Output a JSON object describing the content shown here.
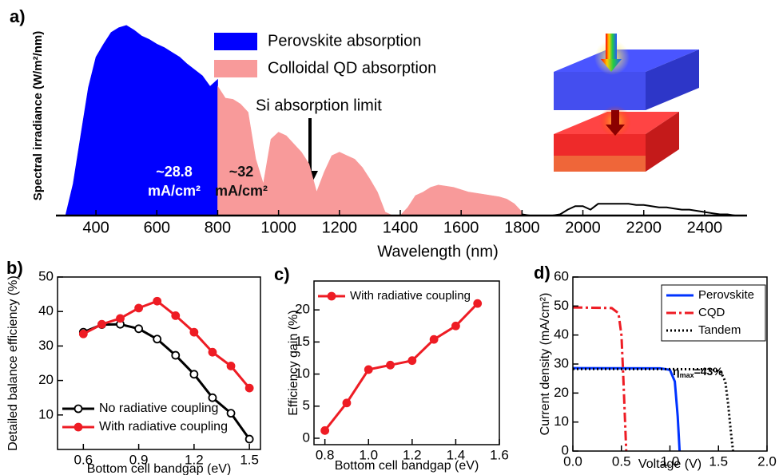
{
  "chart_data": [
    {
      "type": "area",
      "panel_label": "a)",
      "xlabel": "Wavelength (nm)",
      "ylabel": "Spectral irradiance (W/m²/nm)",
      "xlim": [
        300,
        2500
      ],
      "xticks": [
        400,
        600,
        800,
        1000,
        1200,
        1400,
        1600,
        1800,
        2000,
        2200,
        2400
      ],
      "ylim": [
        0,
        1.7
      ],
      "series": [
        {
          "name": "Perovskite absorption",
          "color": "#0000ff",
          "fill": true,
          "x": [
            300,
            325,
            350,
            375,
            400,
            425,
            450,
            475,
            500,
            525,
            550,
            575,
            600,
            625,
            650,
            675,
            700,
            725,
            750,
            775,
            800
          ],
          "values": [
            0,
            0.27,
            0.68,
            1.09,
            1.35,
            1.46,
            1.56,
            1.6,
            1.62,
            1.58,
            1.53,
            1.5,
            1.46,
            1.43,
            1.39,
            1.35,
            1.29,
            1.24,
            1.19,
            1.1,
            1.16
          ]
        },
        {
          "name": "Colloidal QD absorption",
          "color": "#f89a9a",
          "fill": true,
          "x": [
            800,
            825,
            850,
            875,
            900,
            925,
            950,
            975,
            1000,
            1025,
            1050,
            1075,
            1100,
            1125,
            1150,
            1175,
            1200,
            1225,
            1250,
            1275,
            1300,
            1325,
            1350,
            1375,
            1400,
            1425,
            1450,
            1475,
            1500,
            1525,
            1550,
            1575,
            1600,
            1625,
            1650,
            1675,
            1700,
            1725,
            1750,
            1775,
            1800
          ],
          "values": [
            1.1,
            1.0,
            0.99,
            0.95,
            0.88,
            0.48,
            0.27,
            0.65,
            0.71,
            0.68,
            0.61,
            0.54,
            0.44,
            0.2,
            0.37,
            0.51,
            0.54,
            0.51,
            0.48,
            0.41,
            0.31,
            0.2,
            0.03,
            0,
            0,
            0.07,
            0.17,
            0.2,
            0.24,
            0.26,
            0.25,
            0.24,
            0.22,
            0.2,
            0.19,
            0.18,
            0.17,
            0.16,
            0.14,
            0.1,
            0.03
          ]
        },
        {
          "color": "#000000",
          "fill": false,
          "x": [
            1800,
            1825,
            1850,
            1875,
            1900,
            1925,
            1950,
            1975,
            2000,
            2025,
            2050,
            2075,
            2100,
            2125,
            2150,
            2175,
            2200,
            2225,
            2250,
            2275,
            2300,
            2325,
            2350,
            2375,
            2400,
            2425,
            2450,
            2475,
            2500
          ],
          "values": [
            0.01,
            0,
            0,
            0,
            0,
            0.01,
            0.05,
            0.08,
            0.08,
            0.05,
            0.1,
            0.1,
            0.1,
            0.1,
            0.1,
            0.09,
            0.09,
            0.08,
            0.07,
            0.07,
            0.06,
            0.05,
            0.05,
            0.04,
            0.03,
            0.02,
            0.01,
            0.01,
            0
          ]
        }
      ],
      "annotations": [
        {
          "lines": [
            "~28.8",
            "mA/cm²"
          ]
        },
        {
          "lines": [
            "~32",
            "mA/cm²"
          ]
        },
        {
          "lines": [
            "Si absorption limit"
          ]
        }
      ]
    },
    {
      "type": "line",
      "panel_label": "b)",
      "xlabel": "Bottom cell bandgap (eV)",
      "ylabel": "Detailed balance efficiency (%)",
      "xlim": [
        0.46,
        1.56
      ],
      "xticks": [
        0.6,
        0.9,
        1.2,
        1.5
      ],
      "ylim": [
        0,
        50
      ],
      "yticks": [
        10,
        20,
        30,
        40,
        50
      ],
      "legend": "lower left",
      "series": [
        {
          "name": "No radiative coupling",
          "color": "#000000",
          "marker": "open",
          "x": [
            0.6,
            0.7,
            0.8,
            0.9,
            1.0,
            1.1,
            1.2,
            1.3,
            1.4,
            1.5
          ],
          "values": [
            34,
            36.2,
            36.3,
            35,
            32,
            27.3,
            21.8,
            15,
            10.5,
            3
          ]
        },
        {
          "name": "With radiative coupling",
          "color": "#ee1c24",
          "marker": "filled",
          "x": [
            0.6,
            0.7,
            0.8,
            0.9,
            1.0,
            1.1,
            1.2,
            1.3,
            1.4,
            1.5
          ],
          "values": [
            33.5,
            36.3,
            38,
            41,
            43,
            38.8,
            34,
            28.2,
            24.2,
            17.8
          ]
        }
      ]
    },
    {
      "type": "line",
      "panel_label": "c)",
      "xlabel": "Bottom cell bandgap (eV)",
      "ylabel": "Efficiency gain (%)",
      "xlim": [
        0.75,
        1.6
      ],
      "xticks": [
        0.8,
        {
          "value": 1.0,
          "label": "1.0"
        },
        1.2,
        1.4,
        1.6
      ],
      "ylim": [
        -1,
        24.5
      ],
      "yticks": [
        0,
        5,
        10,
        15,
        20
      ],
      "legend": "upper left",
      "series": [
        {
          "name": "With radiative coupling",
          "color": "#ee1c24",
          "marker": "filled",
          "x": [
            0.8,
            0.9,
            1.0,
            1.1,
            1.2,
            1.3,
            1.4,
            1.5
          ],
          "values": [
            1.2,
            5.5,
            10.7,
            11.4,
            12.1,
            15.4,
            17.5,
            21
          ]
        }
      ]
    },
    {
      "type": "line",
      "panel_label": "d)",
      "xlabel": "Voltage (V)",
      "ylabel": "Current density (mA/cm²)",
      "xlim": [
        0,
        2.0
      ],
      "xticks": [
        {
          "value": 0,
          "label": "0.0"
        },
        0.5,
        {
          "value": 1,
          "label": "1.0"
        },
        1.5,
        {
          "value": 2,
          "label": "2.0"
        }
      ],
      "ylim": [
        0,
        60
      ],
      "yticks": [
        0,
        10,
        20,
        30,
        40,
        50,
        60
      ],
      "legend": "upper right",
      "series": [
        {
          "name": "Perovskite",
          "color": "#0033ff",
          "dash": "solid",
          "x": [
            0,
            0.9,
            1.0,
            1.05,
            1.08,
            1.1
          ],
          "values": [
            28.6,
            28.5,
            28,
            24,
            12,
            0
          ]
        },
        {
          "name": "CQD",
          "color": "#ee1c24",
          "dash": "dashdot",
          "x": [
            0,
            0.4,
            0.47,
            0.5,
            0.52,
            0.55
          ],
          "values": [
            49.5,
            49.3,
            47.5,
            40,
            25,
            0
          ]
        },
        {
          "name": "Tandem",
          "color": "#000000",
          "dash": "dotted",
          "x": [
            0,
            1.4,
            1.52,
            1.57,
            1.6,
            1.63,
            1.65
          ],
          "values": [
            28.3,
            28.2,
            27.5,
            24,
            16,
            6,
            0
          ]
        }
      ],
      "annotations": [
        {
          "parts": [
            "η",
            "max",
            "=43%"
          ]
        }
      ]
    }
  ]
}
